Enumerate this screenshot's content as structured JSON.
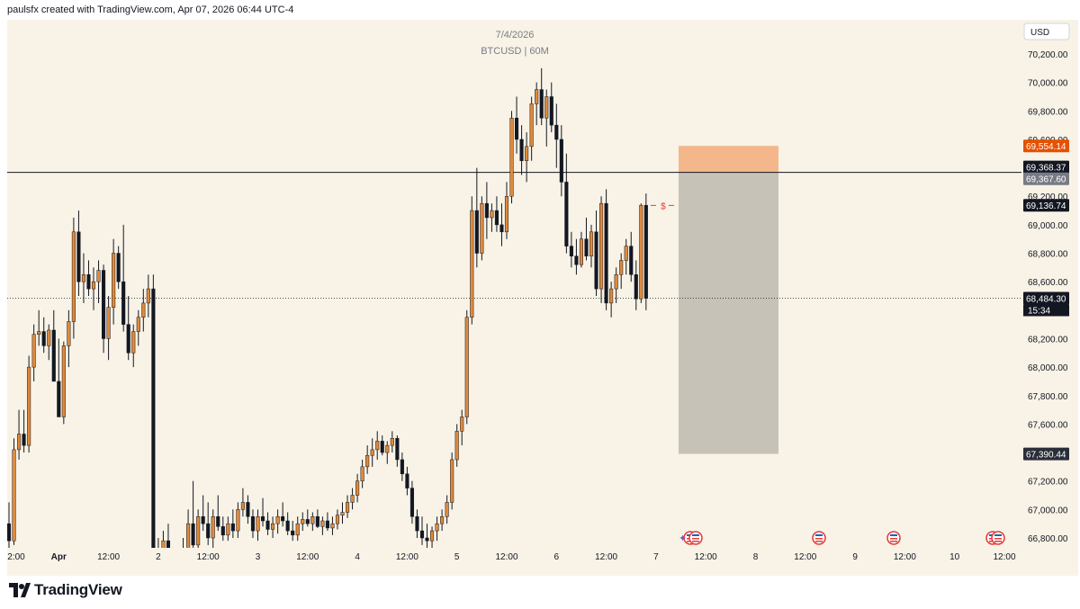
{
  "header": {
    "text": "paulsfx created with TradingView.com, Apr 07, 2026 06:44 UTC-4"
  },
  "watermark": {
    "date": "7/4/2026",
    "symbol": "BTCUSD | 60M"
  },
  "currency_badge": "USD",
  "colors": {
    "background": "#f8f3e6",
    "up_candle": "#e08a3c",
    "down_candle": "#131722",
    "stop_zone": "#f4b68b",
    "target_zone": "#c7c2b7",
    "red_label": "#e53935",
    "text": "#131722",
    "muted_text": "#787b86"
  },
  "price_labels": [
    {
      "value": "69,554.14",
      "price": 69554.14,
      "bg": "#e65100",
      "fg": "#ffffff"
    },
    {
      "value": "69,368.37",
      "price": 69368.37,
      "bg": "#131722",
      "fg": "#ffffff",
      "offset": -6
    },
    {
      "value": "69,367.60",
      "price": 69367.6,
      "bg": "#787b86",
      "fg": "#ffffff",
      "offset": 7
    },
    {
      "value": "69,136.74",
      "price": 69136.74,
      "bg": "#131722",
      "fg": "#ffffff"
    },
    {
      "value": "68,484.30",
      "price": 68484.3,
      "bg": "#131722",
      "fg": "#ffffff"
    },
    {
      "value": "67,390.44",
      "price": 67390.44,
      "bg": "#2a2e39",
      "fg": "#ffffff"
    }
  ],
  "countdown": "15:34",
  "marker_label": "$",
  "footer": {
    "brand": "TradingView"
  },
  "chart_data": {
    "type": "candlestick",
    "symbol": "BTCUSD",
    "interval": "60M",
    "ylim": [
      66700,
      70400
    ],
    "y_ticks": [
      66800,
      67000,
      67200,
      67400,
      67600,
      67800,
      68000,
      68200,
      68400,
      68600,
      68800,
      69000,
      69200,
      69400,
      69600,
      69800,
      70000,
      70200
    ],
    "y_tick_labels": [
      "66,800.00",
      "67,000.00",
      "67,200.00",
      "67,400.00",
      "67,600.00",
      "67,800.00",
      "68,000.00",
      "68,200.00",
      "68,400.00",
      "68,600.00",
      "68,800.00",
      "69,000.00",
      "69,200.00",
      "69,400.00",
      "69,600.00",
      "69,800.00",
      "70,000.00",
      "70,200.00"
    ],
    "x_ticks": [
      {
        "label": "2:00",
        "i": 0
      },
      {
        "label": "Apr",
        "i": 10
      },
      {
        "label": "12:00",
        "i": 20
      },
      {
        "label": "2",
        "i": 30
      },
      {
        "label": "12:00",
        "i": 40
      },
      {
        "label": "3",
        "i": 50
      },
      {
        "label": "12:00",
        "i": 60
      },
      {
        "label": "4",
        "i": 70
      },
      {
        "label": "12:00",
        "i": 80
      },
      {
        "label": "5",
        "i": 90
      },
      {
        "label": "12:00",
        "i": 100
      },
      {
        "label": "6",
        "i": 110
      },
      {
        "label": "12:00",
        "i": 120
      },
      {
        "label": "7",
        "i": 130
      },
      {
        "label": "12:00",
        "i": 140
      },
      {
        "label": "8",
        "i": 150
      },
      {
        "label": "12:00",
        "i": 160
      },
      {
        "label": "9",
        "i": 170
      },
      {
        "label": "12:00",
        "i": 180
      },
      {
        "label": "10",
        "i": 190
      },
      {
        "label": "12:00",
        "i": 200
      }
    ],
    "candles": [
      [
        66900,
        67050,
        66700,
        66780
      ],
      [
        66780,
        67500,
        66750,
        67420
      ],
      [
        67420,
        67700,
        67350,
        67530
      ],
      [
        67530,
        67700,
        67400,
        67450
      ],
      [
        67450,
        68080,
        67400,
        68000
      ],
      [
        68000,
        68300,
        67900,
        68230
      ],
      [
        68230,
        68400,
        68150,
        68250
      ],
      [
        68250,
        68350,
        68100,
        68150
      ],
      [
        68150,
        68300,
        68050,
        68260
      ],
      [
        68260,
        68400,
        67900,
        67900
      ],
      [
        67900,
        68200,
        67650,
        67650
      ],
      [
        67650,
        68180,
        67600,
        68150
      ],
      [
        68150,
        68400,
        68000,
        68320
      ],
      [
        68320,
        69050,
        68200,
        68950
      ],
      [
        68950,
        69100,
        68500,
        68600
      ],
      [
        68600,
        68800,
        68450,
        68650
      ],
      [
        68650,
        68750,
        68500,
        68550
      ],
      [
        68550,
        68700,
        68400,
        68600
      ],
      [
        68600,
        68750,
        68450,
        68680
      ],
      [
        68680,
        68720,
        68100,
        68200
      ],
      [
        68200,
        68500,
        68050,
        68420
      ],
      [
        68420,
        68900,
        68300,
        68800
      ],
      [
        68800,
        68850,
        68550,
        68600
      ],
      [
        68600,
        69000,
        68250,
        68300
      ],
      [
        68300,
        68500,
        68050,
        68100
      ],
      [
        68100,
        68300,
        68000,
        68250
      ],
      [
        68250,
        68400,
        68150,
        68350
      ],
      [
        68350,
        68550,
        68250,
        68450
      ],
      [
        68450,
        68650,
        68350,
        68550
      ],
      [
        68550,
        68650,
        66600,
        66600
      ],
      [
        66600,
        66800,
        66450,
        66500
      ],
      [
        66500,
        66850,
        66450,
        66780
      ],
      [
        66780,
        66900,
        66400,
        66400
      ],
      [
        66400,
        66600,
        66300,
        66450
      ],
      [
        66450,
        66700,
        66400,
        66650
      ],
      [
        66650,
        66800,
        66500,
        66600
      ],
      [
        66600,
        67000,
        66550,
        66900
      ],
      [
        66900,
        67200,
        66700,
        66750
      ],
      [
        66750,
        67000,
        66650,
        66950
      ],
      [
        66950,
        67100,
        66850,
        66900
      ],
      [
        66900,
        67050,
        66750,
        66800
      ],
      [
        66800,
        67000,
        66700,
        66950
      ],
      [
        66950,
        67100,
        66850,
        66880
      ],
      [
        66880,
        66950,
        66780,
        66820
      ],
      [
        66820,
        66950,
        66780,
        66900
      ],
      [
        66900,
        67000,
        66800,
        66850
      ],
      [
        66850,
        67050,
        66800,
        67000
      ],
      [
        67000,
        67150,
        66950,
        67050
      ],
      [
        67050,
        67100,
        66900,
        66950
      ],
      [
        66950,
        67000,
        66800,
        66850
      ],
      [
        66850,
        67000,
        66780,
        66950
      ],
      [
        66950,
        67080,
        66880,
        66920
      ],
      [
        66920,
        66980,
        66820,
        66860
      ],
      [
        66860,
        66950,
        66800,
        66900
      ],
      [
        66900,
        67000,
        66830,
        66950
      ],
      [
        66950,
        67050,
        66880,
        66920
      ],
      [
        66920,
        66980,
        66820,
        66850
      ],
      [
        66850,
        66920,
        66780,
        66820
      ],
      [
        66820,
        66950,
        66780,
        66900
      ],
      [
        66900,
        66980,
        66850,
        66930
      ],
      [
        66930,
        67000,
        66880,
        66900
      ],
      [
        66900,
        66980,
        66850,
        66950
      ],
      [
        66950,
        67000,
        66870,
        66880
      ],
      [
        66880,
        66950,
        66820,
        66920
      ],
      [
        66920,
        66980,
        66850,
        66870
      ],
      [
        66870,
        66950,
        66820,
        66900
      ],
      [
        66900,
        67000,
        66860,
        66960
      ],
      [
        66960,
        67050,
        66900,
        66980
      ],
      [
        66980,
        67100,
        66940,
        67050
      ],
      [
        67050,
        67150,
        67000,
        67100
      ],
      [
        67100,
        67250,
        67050,
        67200
      ],
      [
        67200,
        67350,
        67150,
        67300
      ],
      [
        67300,
        67450,
        67250,
        67380
      ],
      [
        67380,
        67500,
        67300,
        67420
      ],
      [
        67420,
        67550,
        67350,
        67480
      ],
      [
        67480,
        67520,
        67380,
        67400
      ],
      [
        67400,
        67480,
        67320,
        67450
      ],
      [
        67450,
        67550,
        67400,
        67500
      ],
      [
        67500,
        67520,
        67300,
        67350
      ],
      [
        67350,
        67400,
        67200,
        67250
      ],
      [
        67250,
        67300,
        67100,
        67150
      ],
      [
        67150,
        67200,
        66900,
        66950
      ],
      [
        66950,
        67000,
        66800,
        66850
      ],
      [
        66850,
        66950,
        66750,
        66800
      ],
      [
        66800,
        66900,
        66720,
        66780
      ],
      [
        66780,
        66880,
        66700,
        66850
      ],
      [
        66850,
        66950,
        66780,
        66900
      ],
      [
        66900,
        67000,
        66850,
        66950
      ],
      [
        66950,
        67100,
        66900,
        67050
      ],
      [
        67050,
        67400,
        67000,
        67350
      ],
      [
        67350,
        67600,
        67300,
        67550
      ],
      [
        67550,
        67700,
        67450,
        67650
      ],
      [
        67650,
        68400,
        67600,
        68350
      ],
      [
        68350,
        69200,
        68300,
        69100
      ],
      [
        69100,
        69400,
        68700,
        68800
      ],
      [
        68800,
        69200,
        68750,
        69150
      ],
      [
        69150,
        69300,
        68900,
        69050
      ],
      [
        69050,
        69150,
        68950,
        69100
      ],
      [
        69100,
        69200,
        68950,
        69000
      ],
      [
        69000,
        69150,
        68850,
        68950
      ],
      [
        68950,
        69300,
        68900,
        69200
      ],
      [
        69200,
        69800,
        69150,
        69750
      ],
      [
        69750,
        69900,
        69500,
        69600
      ],
      [
        69600,
        69700,
        69350,
        69450
      ],
      [
        69450,
        69650,
        69300,
        69550
      ],
      [
        69550,
        69900,
        69450,
        69850
      ],
      [
        69850,
        70000,
        69700,
        69950
      ],
      [
        69950,
        70100,
        69700,
        69750
      ],
      [
        69750,
        69950,
        69550,
        69900
      ],
      [
        69900,
        70000,
        69650,
        69700
      ],
      [
        69700,
        69850,
        69400,
        69600
      ],
      [
        69600,
        69700,
        69200,
        69300
      ],
      [
        69300,
        69500,
        68800,
        68850
      ],
      [
        68850,
        68950,
        68700,
        68780
      ],
      [
        68780,
        68900,
        68650,
        68720
      ],
      [
        68720,
        68950,
        68700,
        68900
      ],
      [
        68900,
        69050,
        68750,
        68780
      ],
      [
        68780,
        69000,
        68700,
        68950
      ],
      [
        68950,
        69100,
        68500,
        68550
      ],
      [
        68550,
        69200,
        68450,
        69150
      ],
      [
        69150,
        69250,
        68400,
        68450
      ],
      [
        68450,
        68600,
        68350,
        68550
      ],
      [
        68550,
        68700,
        68450,
        68650
      ],
      [
        68650,
        68800,
        68550,
        68750
      ],
      [
        68750,
        68900,
        68650,
        68850
      ],
      [
        68850,
        68950,
        68600,
        68650
      ],
      [
        68650,
        68750,
        68400,
        68480
      ],
      [
        68480,
        69150,
        68450,
        69137
      ],
      [
        69137,
        69220,
        68400,
        68484
      ]
    ],
    "trade_zone": {
      "entry": 69367.6,
      "stop": 69554.14,
      "target": 67390.44
    },
    "horizontal_line": 69368.37,
    "current_price": 68484.3
  }
}
